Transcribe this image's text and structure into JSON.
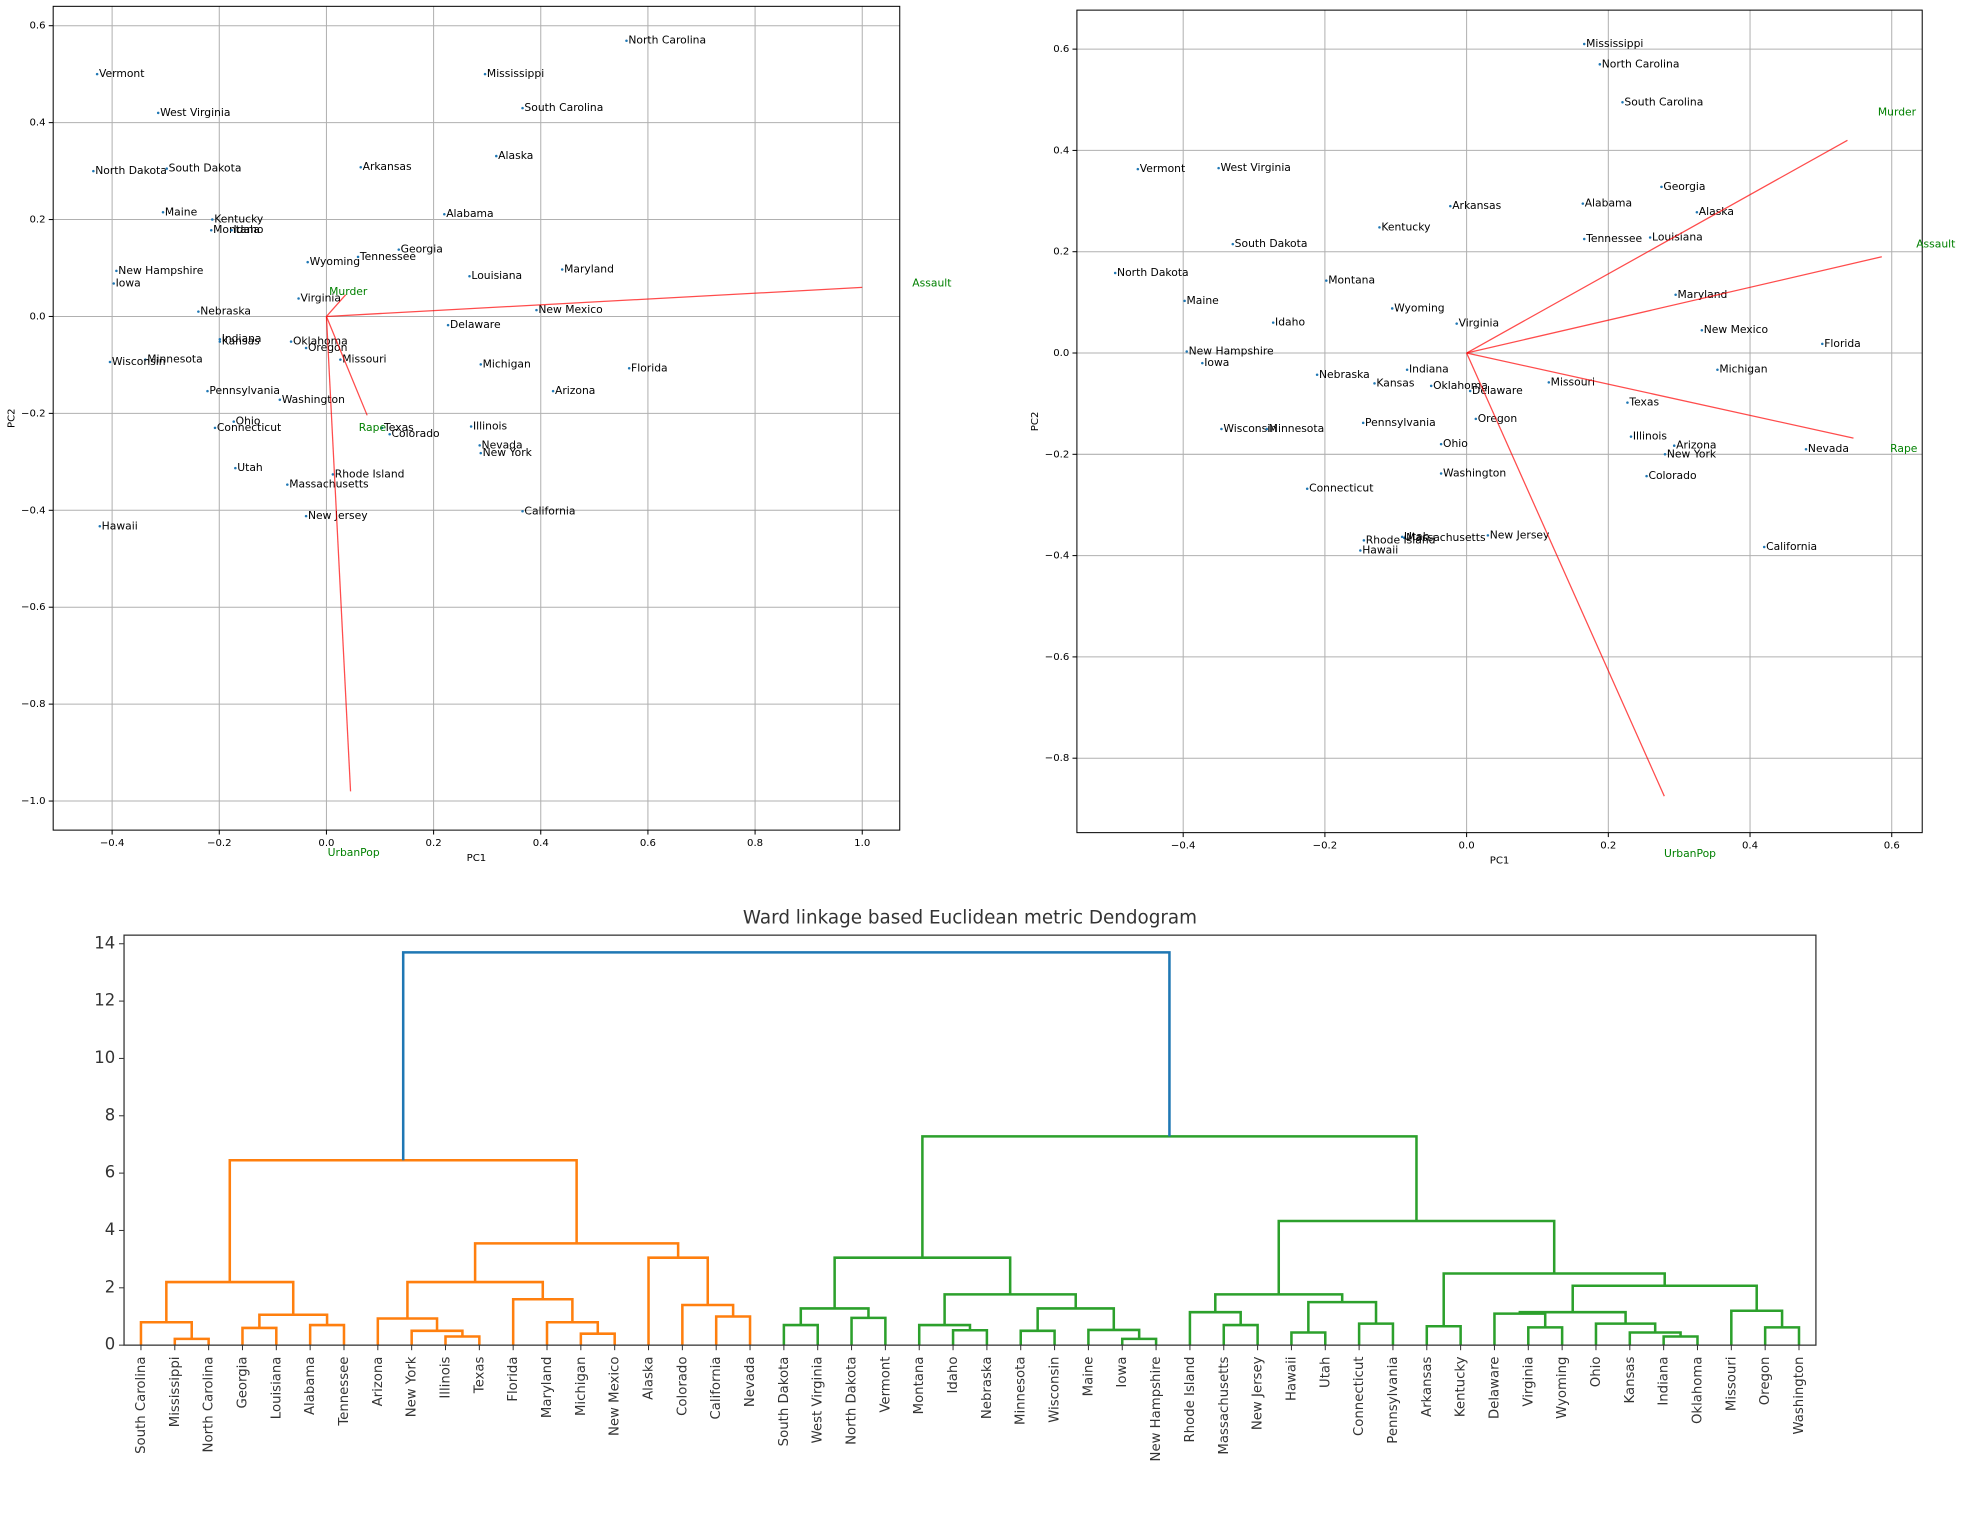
{
  "chart_data": [
    {
      "type": "scatter",
      "xlabel": "PC1",
      "ylabel": "PC2",
      "xlim": [
        -0.51,
        1.07
      ],
      "ylim": [
        -1.06,
        0.64
      ],
      "xticks": [
        {
          "value": -0.4,
          "label": "−0.4"
        },
        {
          "value": -0.2,
          "label": "−0.2"
        },
        {
          "value": 0,
          "label": "0.0"
        },
        0.2,
        0.4,
        0.6,
        0.8,
        {
          "value": 1,
          "label": "1.0"
        }
      ],
      "yticks": [
        {
          "value": -1,
          "label": "−1.0"
        },
        {
          "value": -0.8,
          "label": "−0.8"
        },
        {
          "value": -0.6,
          "label": "−0.6"
        },
        {
          "value": -0.4,
          "label": "−0.4"
        },
        {
          "value": -0.2,
          "label": "−0.2"
        },
        {
          "value": 0,
          "label": "0.0"
        },
        0.2,
        0.4,
        0.6
      ],
      "grid": true,
      "color": "#1f77b4",
      "arrow_color": "#ff0000",
      "arrow_label_color": "#008000",
      "labels": [
        "Vermont",
        "West Virginia",
        "North Dakota",
        "South Dakota",
        "Maine",
        "Kentucky",
        "Montana",
        "Idaho",
        "New Hampshire",
        "Iowa",
        "Nebraska",
        "Indiana",
        "Kansas",
        "Minnesota",
        "Wisconsin",
        "Pennsylvania",
        "Ohio",
        "Connecticut",
        "Utah",
        "Hawaii",
        "Massachusetts",
        "New Jersey",
        "Rhode Island",
        "Washington",
        "Oklahoma",
        "Oregon",
        "Missouri",
        "Virginia",
        "Wyoming",
        "Arkansas",
        "Tennessee",
        "Georgia",
        "Alabama",
        "Mississippi",
        "South Carolina",
        "North Carolina",
        "Alaska",
        "Louisiana",
        "Maryland",
        "New Mexico",
        "Delaware",
        "Michigan",
        "Florida",
        "Arizona",
        "Illinois",
        "Nevada",
        "New York",
        "Texas",
        "Colorado",
        "California"
      ],
      "x": [
        -0.428,
        -0.314,
        -0.435,
        -0.298,
        -0.305,
        -0.213,
        -0.215,
        -0.177,
        -0.392,
        -0.397,
        -0.239,
        -0.199,
        -0.199,
        -0.338,
        -0.404,
        -0.222,
        -0.173,
        -0.208,
        -0.17,
        -0.423,
        -0.073,
        -0.038,
        0.012,
        -0.087,
        -0.066,
        -0.038,
        0.026,
        -0.052,
        -0.035,
        0.064,
        0.059,
        0.135,
        0.22,
        0.296,
        0.366,
        0.56,
        0.317,
        0.267,
        0.44,
        0.392,
        0.227,
        0.288,
        0.565,
        0.423,
        0.27,
        0.286,
        0.288,
        0.104,
        0.118,
        0.366
      ],
      "y": [
        0.5,
        0.42,
        0.3,
        0.305,
        0.215,
        0.2,
        0.178,
        0.178,
        0.094,
        0.068,
        0.01,
        -0.047,
        -0.052,
        -0.089,
        -0.094,
        -0.154,
        -0.217,
        -0.23,
        -0.313,
        -0.433,
        -0.347,
        -0.412,
        -0.326,
        -0.172,
        -0.052,
        -0.065,
        -0.089,
        0.037,
        0.112,
        0.308,
        0.123,
        0.138,
        0.211,
        0.5,
        0.43,
        0.569,
        0.331,
        0.083,
        0.097,
        0.013,
        -0.018,
        -0.099,
        -0.107,
        -0.154,
        -0.227,
        -0.266,
        -0.282,
        -0.23,
        -0.243,
        -0.402
      ],
      "loadings": [
        {
          "name": "Murder",
          "x": 0.036,
          "y": 0.045
        },
        {
          "name": "Assault",
          "x": 1.0,
          "y": 0.06
        },
        {
          "name": "UrbanPop",
          "x": 0.045,
          "y": -0.98
        },
        {
          "name": "Rape",
          "x": 0.076,
          "y": -0.204
        }
      ]
    },
    {
      "type": "scatter",
      "xlabel": "PC1",
      "ylabel": "PC2",
      "xlim": [
        -0.55,
        0.643
      ],
      "ylim": [
        -0.947,
        0.677
      ],
      "xticks": [
        {
          "value": -0.4,
          "label": "−0.4"
        },
        {
          "value": -0.2,
          "label": "−0.2"
        },
        {
          "value": 0,
          "label": "0.0"
        },
        0.2,
        0.4,
        0.6
      ],
      "yticks": [
        {
          "value": -0.8,
          "label": "−0.8"
        },
        {
          "value": -0.6,
          "label": "−0.6"
        },
        {
          "value": -0.4,
          "label": "−0.4"
        },
        {
          "value": -0.2,
          "label": "−0.2"
        },
        {
          "value": 0,
          "label": "0.0"
        },
        0.2,
        0.4,
        0.6
      ],
      "grid": true,
      "color": "#1f77b4",
      "arrow_color": "#ff0000",
      "arrow_label_color": "#008000",
      "labels": [
        "Mississippi",
        "North Carolina",
        "South Carolina",
        "Vermont",
        "West Virginia",
        "Georgia",
        "Arkansas",
        "Alabama",
        "Alaska",
        "Kentucky",
        "Tennessee",
        "Louisiana",
        "South Dakota",
        "North Dakota",
        "Montana",
        "Maryland",
        "Maine",
        "Wyoming",
        "Idaho",
        "Virginia",
        "New Mexico",
        "Florida",
        "New Hampshire",
        "Iowa",
        "Michigan",
        "Indiana",
        "Nebraska",
        "Kansas",
        "Oklahoma",
        "Delaware",
        "Missouri",
        "Texas",
        "Oregon",
        "Pennsylvania",
        "Wisconsin",
        "Minnesota",
        "Illinois",
        "Ohio",
        "Arizona",
        "New York",
        "Nevada",
        "Washington",
        "Colorado",
        "Connecticut",
        "Massachusetts",
        "Utah",
        "Rhode Island",
        "Hawaii",
        "New Jersey",
        "California"
      ],
      "x": [
        0.166,
        0.188,
        0.22,
        -0.464,
        -0.35,
        0.275,
        -0.023,
        0.164,
        0.325,
        -0.123,
        0.166,
        0.259,
        -0.33,
        -0.496,
        -0.198,
        0.295,
        -0.398,
        -0.105,
        -0.273,
        -0.014,
        0.332,
        0.502,
        -0.395,
        -0.373,
        0.354,
        -0.084,
        -0.211,
        -0.13,
        -0.05,
        0.005,
        0.116,
        0.227,
        0.013,
        -0.146,
        -0.346,
        -0.282,
        0.232,
        -0.036,
        0.293,
        0.28,
        0.479,
        -0.036,
        0.254,
        -0.225,
        -0.088,
        -0.091,
        -0.145,
        -0.15,
        0.03,
        0.42
      ],
      "y": [
        0.61,
        0.57,
        0.495,
        0.363,
        0.365,
        0.328,
        0.29,
        0.295,
        0.278,
        0.248,
        0.225,
        0.228,
        0.215,
        0.158,
        0.143,
        0.115,
        0.103,
        0.088,
        0.06,
        0.058,
        0.045,
        0.018,
        0.003,
        -0.02,
        -0.033,
        -0.033,
        -0.043,
        -0.06,
        -0.065,
        -0.075,
        -0.058,
        -0.098,
        -0.13,
        -0.138,
        -0.15,
        -0.15,
        -0.165,
        -0.18,
        -0.183,
        -0.2,
        -0.19,
        -0.238,
        -0.243,
        -0.268,
        -0.365,
        -0.363,
        -0.37,
        -0.39,
        -0.36,
        -0.383
      ],
      "loadings": [
        {
          "name": "Murder",
          "x": 0.5375,
          "y": 0.42
        },
        {
          "name": "Assault",
          "x": 0.586,
          "y": 0.19
        },
        {
          "name": "Rape",
          "x": 0.546,
          "y": -0.168
        },
        {
          "name": "UrbanPop",
          "x": 0.279,
          "y": -0.875
        }
      ]
    },
    {
      "type": "dendrogram",
      "title": "Ward linkage based Euclidean metric Dendogram",
      "ylim": [
        0,
        14.3
      ],
      "yticks": [
        0,
        2,
        4,
        6,
        8,
        10,
        12,
        14
      ],
      "leaves": [
        "South Carolina",
        "Mississippi",
        "North Carolina",
        "Georgia",
        "Louisiana",
        "Alabama",
        "Tennessee",
        "Arizona",
        "New York",
        "Illinois",
        "Texas",
        "Florida",
        "Maryland",
        "Michigan",
        "New Mexico",
        "Alaska",
        "Colorado",
        "California",
        "Nevada",
        "South Dakota",
        "West Virginia",
        "North Dakota",
        "Vermont",
        "Montana",
        "Idaho",
        "Nebraska",
        "Minnesota",
        "Wisconsin",
        "Maine",
        "Iowa",
        "New Hampshire",
        "Rhode Island",
        "Massachusetts",
        "New Jersey",
        "Hawaii",
        "Utah",
        "Connecticut",
        "Pennsylvania",
        "Arkansas",
        "Kentucky",
        "Delaware",
        "Virginia",
        "Wyoming",
        "Ohio",
        "Kansas",
        "Indiana",
        "Oklahoma",
        "Missouri",
        "Oregon",
        "Washington"
      ],
      "merges": [
        {
          "children": [
            1,
            2
          ],
          "height": 0.22,
          "color": "#ff7f0e"
        },
        {
          "children": [
            0,
            50
          ],
          "height": 0.8,
          "color": "#ff7f0e"
        },
        {
          "children": [
            3,
            4
          ],
          "height": 0.6,
          "color": "#ff7f0e"
        },
        {
          "children": [
            5,
            6
          ],
          "height": 0.7,
          "color": "#ff7f0e"
        },
        {
          "children": [
            52,
            53
          ],
          "height": 1.06,
          "color": "#ff7f0e"
        },
        {
          "children": [
            51,
            54
          ],
          "height": 2.2,
          "color": "#ff7f0e"
        },
        {
          "children": [
            9,
            10
          ],
          "height": 0.3,
          "color": "#ff7f0e"
        },
        {
          "children": [
            8,
            56
          ],
          "height": 0.5,
          "color": "#ff7f0e"
        },
        {
          "children": [
            7,
            57
          ],
          "height": 0.93,
          "color": "#ff7f0e"
        },
        {
          "children": [
            13,
            14
          ],
          "height": 0.4,
          "color": "#ff7f0e"
        },
        {
          "children": [
            12,
            59
          ],
          "height": 0.8,
          "color": "#ff7f0e"
        },
        {
          "children": [
            11,
            60
          ],
          "height": 1.6,
          "color": "#ff7f0e"
        },
        {
          "children": [
            58,
            61
          ],
          "height": 2.2,
          "color": "#ff7f0e"
        },
        {
          "children": [
            17,
            18
          ],
          "height": 1.0,
          "color": "#ff7f0e"
        },
        {
          "children": [
            16,
            63
          ],
          "height": 1.4,
          "color": "#ff7f0e"
        },
        {
          "children": [
            15,
            64
          ],
          "height": 3.05,
          "color": "#ff7f0e"
        },
        {
          "children": [
            62,
            65
          ],
          "height": 3.55,
          "color": "#ff7f0e"
        },
        {
          "children": [
            55,
            66
          ],
          "height": 6.45,
          "color": "#ff7f0e"
        },
        {
          "children": [
            19,
            20
          ],
          "height": 0.7,
          "color": "#2ca02c"
        },
        {
          "children": [
            21,
            22
          ],
          "height": 0.95,
          "color": "#2ca02c"
        },
        {
          "children": [
            68,
            69
          ],
          "height": 1.28,
          "color": "#2ca02c"
        },
        {
          "children": [
            24,
            25
          ],
          "height": 0.52,
          "color": "#2ca02c"
        },
        {
          "children": [
            23,
            71
          ],
          "height": 0.7,
          "color": "#2ca02c"
        },
        {
          "children": [
            26,
            27
          ],
          "height": 0.5,
          "color": "#2ca02c"
        },
        {
          "children": [
            29,
            30
          ],
          "height": 0.22,
          "color": "#2ca02c"
        },
        {
          "children": [
            28,
            74
          ],
          "height": 0.53,
          "color": "#2ca02c"
        },
        {
          "children": [
            73,
            75
          ],
          "height": 1.28,
          "color": "#2ca02c"
        },
        {
          "children": [
            72,
            76
          ],
          "height": 1.77,
          "color": "#2ca02c"
        },
        {
          "children": [
            70,
            77
          ],
          "height": 3.05,
          "color": "#2ca02c"
        },
        {
          "children": [
            32,
            33
          ],
          "height": 0.7,
          "color": "#2ca02c"
        },
        {
          "children": [
            31,
            79
          ],
          "height": 1.15,
          "color": "#2ca02c"
        },
        {
          "children": [
            34,
            35
          ],
          "height": 0.44,
          "color": "#2ca02c"
        },
        {
          "children": [
            36,
            37
          ],
          "height": 0.75,
          "color": "#2ca02c"
        },
        {
          "children": [
            81,
            82
          ],
          "height": 1.5,
          "color": "#2ca02c"
        },
        {
          "children": [
            80,
            83
          ],
          "height": 1.77,
          "color": "#2ca02c"
        },
        {
          "children": [
            38,
            39
          ],
          "height": 0.66,
          "color": "#2ca02c"
        },
        {
          "children": [
            41,
            42
          ],
          "height": 0.62,
          "color": "#2ca02c"
        },
        {
          "children": [
            40,
            86
          ],
          "height": 1.1,
          "color": "#2ca02c"
        },
        {
          "children": [
            45,
            46
          ],
          "height": 0.3,
          "color": "#2ca02c"
        },
        {
          "children": [
            44,
            88
          ],
          "height": 0.44,
          "color": "#2ca02c"
        },
        {
          "children": [
            43,
            89
          ],
          "height": 0.75,
          "color": "#2ca02c"
        },
        {
          "children": [
            87,
            90
          ],
          "height": 1.15,
          "color": "#2ca02c"
        },
        {
          "children": [
            48,
            49
          ],
          "height": 0.62,
          "color": "#2ca02c"
        },
        {
          "children": [
            47,
            92
          ],
          "height": 1.2,
          "color": "#2ca02c"
        },
        {
          "children": [
            91,
            93
          ],
          "height": 2.07,
          "color": "#2ca02c"
        },
        {
          "children": [
            85,
            94
          ],
          "height": 2.5,
          "color": "#2ca02c"
        },
        {
          "children": [
            84,
            95
          ],
          "height": 4.33,
          "color": "#2ca02c"
        },
        {
          "children": [
            78,
            96
          ],
          "height": 7.28,
          "color": "#2ca02c"
        },
        {
          "children": [
            67,
            97
          ],
          "height": 13.7,
          "color": "#1f77b4"
        }
      ]
    }
  ]
}
